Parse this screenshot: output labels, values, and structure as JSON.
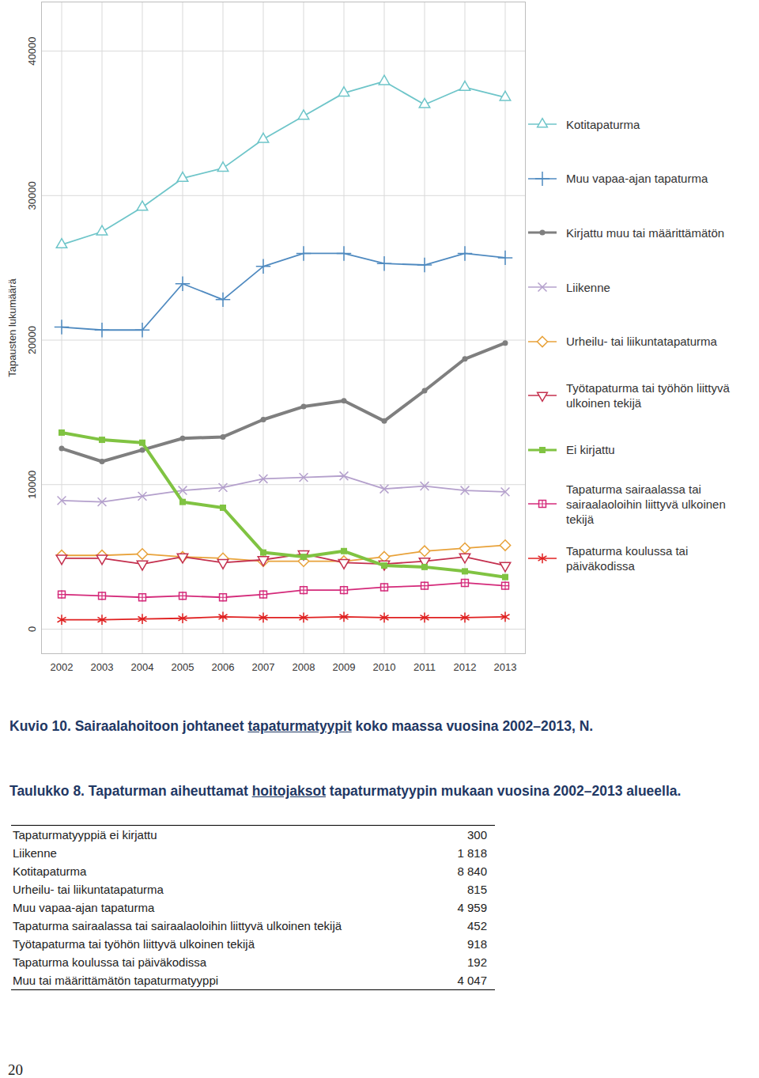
{
  "chart_data": {
    "type": "line",
    "y_label": "Tapausten lukumäärä",
    "x": [
      2002,
      2003,
      2004,
      2005,
      2006,
      2007,
      2008,
      2009,
      2010,
      2011,
      2012,
      2013
    ],
    "xlim": [
      2001.5,
      2013.5
    ],
    "xticks": [
      2002,
      2003,
      2004,
      2005,
      2006,
      2007,
      2008,
      2009,
      2010,
      2011,
      2012,
      2013
    ],
    "ylim": [
      -1700,
      43400
    ],
    "yticks": [
      0,
      10000,
      20000,
      30000,
      40000
    ],
    "grid": true,
    "legend": "right",
    "series": [
      {
        "name": "Kotitapaturma",
        "color": "#6ec5c9",
        "marker": "triangle",
        "values": [
          26600,
          27500,
          29200,
          31200,
          31900,
          33900,
          35500,
          37100,
          37900,
          36300,
          37500,
          36800
        ]
      },
      {
        "name": "Muu vapaa-ajan tapaturma",
        "color": "#4f8ac0",
        "marker": "plus",
        "values": [
          20900,
          20700,
          20700,
          23900,
          22800,
          25100,
          26000,
          26000,
          25300,
          25200,
          26000,
          25700
        ]
      },
      {
        "name": "Kirjattu muu tai määrittämätön",
        "color": "#7f7f7f",
        "marker": "circle",
        "values": [
          12500,
          11600,
          12400,
          13200,
          13300,
          14500,
          15400,
          15800,
          14400,
          16500,
          18700,
          19800
        ]
      },
      {
        "name": "Liikenne",
        "color": "#b4a0cc",
        "marker": "times",
        "values": [
          8900,
          8800,
          9200,
          9600,
          9800,
          10400,
          10500,
          10600,
          9700,
          9900,
          9600,
          9500
        ]
      },
      {
        "name": "Urheilu- tai liikuntatapaturma",
        "color": "#e8a23a",
        "marker": "diamond",
        "values": [
          5100,
          5100,
          5200,
          5000,
          4900,
          4700,
          4700,
          4700,
          5000,
          5400,
          5600,
          5800
        ]
      },
      {
        "name": "Työtapaturma tai työhön liittyvä ulkoinen tekijä",
        "color": "#c4304e",
        "marker": "triangle-down",
        "values": [
          4900,
          4900,
          4500,
          5000,
          4600,
          4800,
          5200,
          4600,
          4500,
          4700,
          5000,
          4400
        ]
      },
      {
        "name": "Ei kirjattu",
        "color": "#80c342",
        "marker": "square",
        "values": [
          13600,
          13100,
          12900,
          8800,
          8400,
          5300,
          5000,
          5400,
          4400,
          4300,
          4000,
          3600
        ]
      },
      {
        "name": "Tapaturma sairaalassa tai sairaalaoloihin liittyvä ulkoinen tekijä",
        "color": "#d42a7a",
        "marker": "square-cross",
        "values": [
          2400,
          2300,
          2200,
          2300,
          2200,
          2400,
          2700,
          2700,
          2900,
          3000,
          3200,
          3000
        ]
      },
      {
        "name": "Tapaturma koulussa tai päiväkodissa",
        "color": "#e02020",
        "marker": "asterisk",
        "values": [
          650,
          650,
          700,
          750,
          850,
          800,
          800,
          850,
          800,
          800,
          800,
          850
        ]
      }
    ]
  },
  "figure_caption": {
    "before": "Kuvio 10. Sairaalahoitoon johtaneet ",
    "underlined": "tapaturmatyypit",
    "after": " koko maassa vuosina 2002–2013, N."
  },
  "table_caption": {
    "before": "Taulukko 8. Tapaturman aiheuttamat ",
    "underlined": "hoitojaksot",
    "after": " tapaturmatyypin mukaan vuosina 2002–2013 alueella."
  },
  "table": {
    "rows": [
      [
        "Tapaturmatyyppiä ei kirjattu",
        "300"
      ],
      [
        "Liikenne",
        "1 818"
      ],
      [
        "Kotitapaturma",
        "8 840"
      ],
      [
        "Urheilu- tai liikuntatapaturma",
        "815"
      ],
      [
        "Muu vapaa-ajan tapaturma",
        "4 959"
      ],
      [
        "Tapaturma sairaalassa tai sairaalaoloihin liittyvä ulkoinen tekijä",
        "452"
      ],
      [
        "Työtapaturma tai työhön liittyvä ulkoinen tekijä",
        "918"
      ],
      [
        "Tapaturma koulussa tai päiväkodissa",
        "192"
      ],
      [
        "Muu tai määrittämätön tapaturmatyyppi",
        "4 047"
      ]
    ]
  },
  "page_number": 20
}
